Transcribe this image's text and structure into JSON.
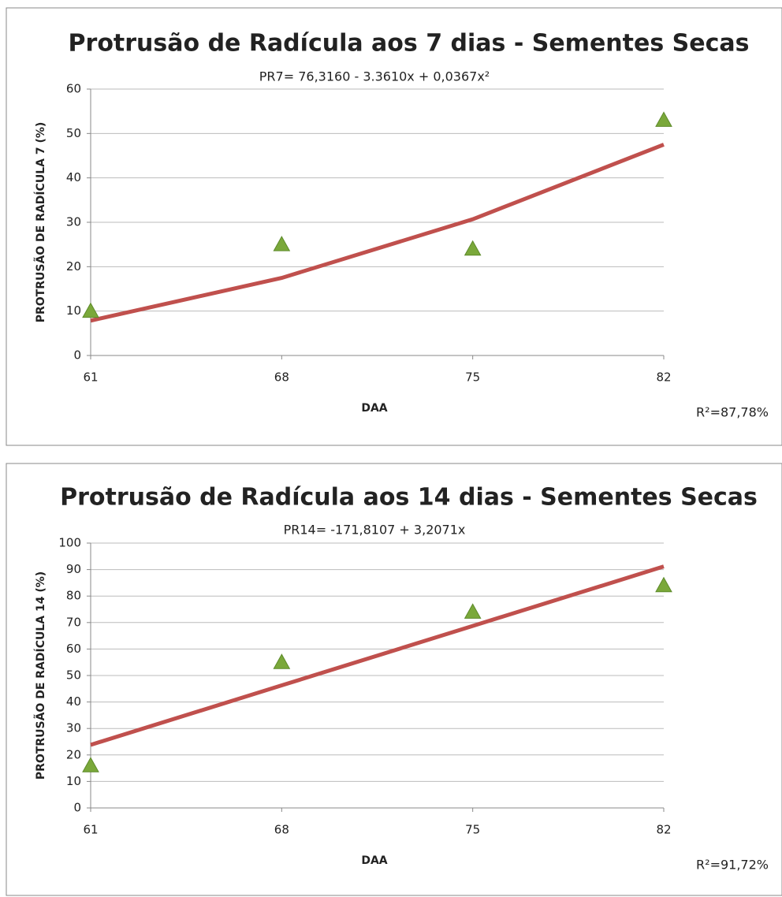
{
  "chart_data": [
    {
      "type": "scatter",
      "title": "Protrusão de Radícula aos 7 dias - Sementes Secas",
      "subtitle": "PR7=  76,3160 - 3.3610x + 0,0367x²",
      "x_label": "DAA",
      "y_label": "PROTRUSÃO DE RADÍCULA 7 (%)",
      "annotation": "R²=87,78%",
      "x": [
        61,
        68,
        75,
        82
      ],
      "series": [
        {
          "color": "#7aa83a",
          "marker": "triangle",
          "values": [
            10,
            25,
            24,
            53
          ]
        },
        {
          "color": "#c0504d",
          "marker": "line",
          "values": [
            7.85,
            17.47,
            30.68,
            47.49
          ]
        }
      ],
      "xlim": [
        61,
        82
      ],
      "xticks": [
        61,
        68,
        75,
        82
      ],
      "ylim": [
        0,
        60
      ],
      "yticks": [
        0,
        10,
        20,
        30,
        40,
        50,
        60
      ],
      "grid": true
    },
    {
      "type": "scatter",
      "title": "Protrusão de Radícula aos 14 dias - Sementes Secas",
      "subtitle": "PR14=  -171,8107 + 3,2071x",
      "x_label": "DAA",
      "y_label": "PROTRUSÃO DE RADÍCULA 14 (%)",
      "annotation": "R²=91,72%",
      "x": [
        61,
        68,
        75,
        82
      ],
      "series": [
        {
          "color": "#7aa83a",
          "marker": "triangle",
          "values": [
            16,
            55,
            74,
            84
          ]
        },
        {
          "color": "#c0504d",
          "marker": "line",
          "values": [
            23.82,
            46.27,
            68.72,
            91.17
          ]
        }
      ],
      "xlim": [
        61,
        82
      ],
      "xticks": [
        61,
        68,
        75,
        82
      ],
      "ylim": [
        0,
        100
      ],
      "yticks": [
        0,
        10,
        20,
        30,
        40,
        50,
        60,
        70,
        80,
        90,
        100
      ],
      "grid": true
    }
  ]
}
